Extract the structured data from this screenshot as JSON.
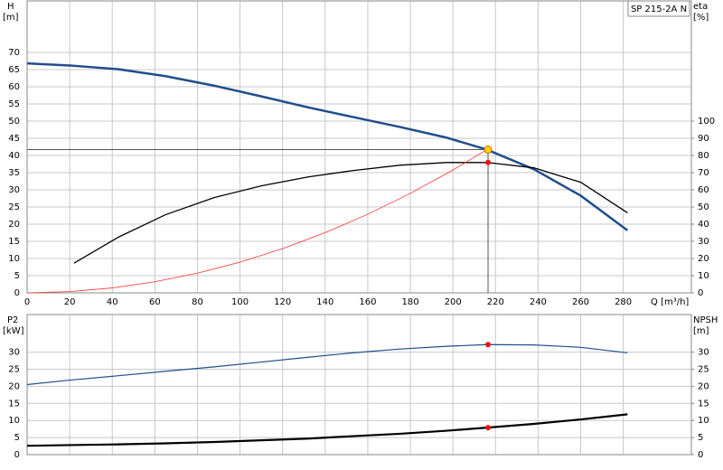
{
  "chart_data": [
    {
      "type": "line",
      "model": "SP 215-2A N",
      "y_label": [
        "H",
        "[m]"
      ],
      "y2_label": [
        "eta",
        "[%]"
      ],
      "x_label": "Q [m³/h]",
      "xlim": [
        0,
        312
      ],
      "xticks": [
        0,
        20,
        40,
        60,
        80,
        100,
        120,
        140,
        160,
        180,
        200,
        220,
        240,
        260,
        280
      ],
      "show_xtick_labels": true,
      "ylim": [
        0,
        85
      ],
      "yticks": [
        0,
        5,
        10,
        15,
        20,
        25,
        30,
        35,
        40,
        45,
        50,
        55,
        60,
        65,
        70
      ],
      "y2lim": [
        0,
        170
      ],
      "y2ticks": [
        0,
        10,
        20,
        30,
        40,
        50,
        60,
        70,
        80,
        90,
        100
      ],
      "grid": true,
      "series": [
        {
          "name": "H",
          "color": "#1f4e8c",
          "width": 2.5,
          "x": [
            0,
            20,
            43,
            65,
            88,
            110,
            132,
            153,
            175,
            197,
            216,
            238,
            260,
            282
          ],
          "values": [
            66.8,
            66.2,
            65.1,
            63.1,
            60.3,
            57.2,
            54,
            51.2,
            48.3,
            45.2,
            41.7,
            36,
            28.3,
            18.2
          ]
        },
        {
          "name": "eta",
          "color": "#000000",
          "width": 1.3,
          "axis": "y2",
          "x": [
            22,
            43,
            65,
            88,
            110,
            132,
            153,
            175,
            197,
            216,
            238,
            260,
            282
          ],
          "values": [
            17.3,
            32.5,
            45.5,
            55.5,
            62.3,
            67.5,
            71.2,
            74.3,
            75.9,
            75.9,
            72.8,
            64.4,
            46.6
          ]
        },
        {
          "name": "system",
          "color": "#ff3030",
          "width": 0.8,
          "x": [
            0,
            20,
            40,
            60,
            80,
            100,
            120,
            140,
            160,
            180,
            200,
            216
          ],
          "values": [
            0,
            0.36,
            1.43,
            3.22,
            5.72,
            8.94,
            12.87,
            17.52,
            22.88,
            28.96,
            35.75,
            41.7
          ]
        }
      ],
      "points": [
        {
          "x": 216.5,
          "y": 41.7,
          "color": "#ffd700",
          "crosshair": true
        },
        {
          "x": 216.5,
          "y": 75.9,
          "color": "#ee1111",
          "axis": "y2"
        }
      ]
    },
    {
      "type": "line",
      "y_label": [
        "P2",
        "[kW]"
      ],
      "y2_label": [
        "NPSH",
        "[m]"
      ],
      "xlim": [
        0,
        312
      ],
      "xticks": [
        0,
        20,
        40,
        60,
        80,
        100,
        120,
        140,
        160,
        180,
        200,
        220,
        240,
        260,
        280
      ],
      "show_xtick_labels": false,
      "ylim": [
        0,
        41
      ],
      "yticks": [
        0,
        5,
        10,
        15,
        20,
        25,
        30
      ],
      "y2lim": [
        0,
        41
      ],
      "y2ticks": [
        0,
        5,
        10,
        15,
        20,
        25,
        30
      ],
      "grid": true,
      "series": [
        {
          "name": "P2",
          "color": "#1f4e8c",
          "width": 1.2,
          "x": [
            0,
            20,
            43,
            65,
            88,
            110,
            132,
            153,
            175,
            197,
            216,
            238,
            260,
            282
          ],
          "values": [
            20.5,
            21.8,
            23.1,
            24.4,
            25.7,
            27.1,
            28.5,
            29.8,
            30.9,
            31.7,
            32.2,
            32.1,
            31.4,
            29.8
          ]
        },
        {
          "name": "NPSH",
          "color": "#000000",
          "width": 2.2,
          "axis": "y2",
          "x": [
            0,
            20,
            43,
            65,
            88,
            110,
            132,
            153,
            175,
            197,
            216,
            238,
            260,
            282
          ],
          "values": [
            2.6,
            2.8,
            3.0,
            3.3,
            3.7,
            4.2,
            4.7,
            5.4,
            6.1,
            7,
            7.9,
            9,
            10.3,
            11.8
          ]
        }
      ],
      "points": [
        {
          "x": 216.5,
          "y": 32.2,
          "color": "#ee1111"
        },
        {
          "x": 216.5,
          "y": 7.9,
          "color": "#ee1111",
          "axis": "y2"
        }
      ]
    }
  ]
}
